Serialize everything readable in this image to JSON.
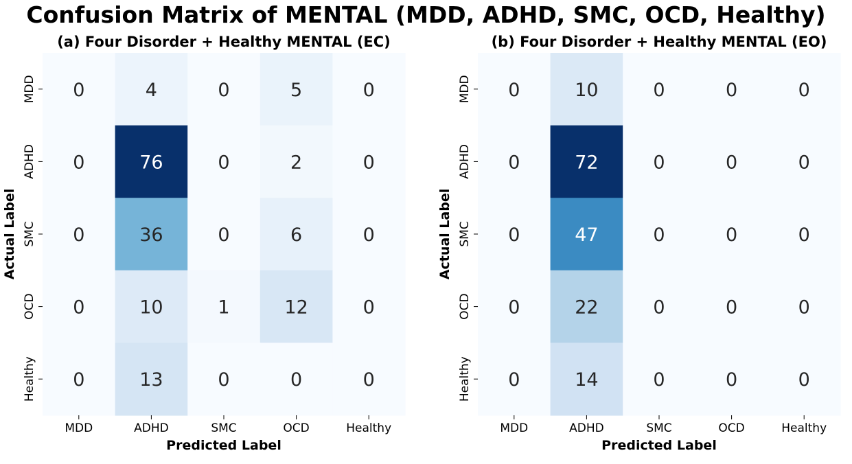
{
  "suptitle": "Confusion Matrix of MENTAL (MDD, ADHD, SMC, OCD, Healthy)",
  "chart_data": [
    {
      "type": "heatmap",
      "title": "(a) Four Disorder + Healthy MENTAL (EC)",
      "xlabel": "Predicted Label",
      "ylabel": "Actual Label",
      "x_categories": [
        "MDD",
        "ADHD",
        "SMC",
        "OCD",
        "Healthy"
      ],
      "y_categories": [
        "MDD",
        "ADHD",
        "SMC",
        "OCD",
        "Healthy"
      ],
      "matrix": [
        [
          0,
          4,
          0,
          5,
          0
        ],
        [
          0,
          76,
          0,
          2,
          0
        ],
        [
          0,
          36,
          0,
          6,
          0
        ],
        [
          0,
          10,
          1,
          12,
          0
        ],
        [
          0,
          13,
          0,
          0,
          0
        ]
      ],
      "colormap": "Blues",
      "colorbar": false
    },
    {
      "type": "heatmap",
      "title": "(b) Four Disorder + Healthy MENTAL (EO)",
      "xlabel": "Predicted Label",
      "ylabel": "Actual Label",
      "x_categories": [
        "MDD",
        "ADHD",
        "SMC",
        "OCD",
        "Healthy"
      ],
      "y_categories": [
        "MDD",
        "ADHD",
        "SMC",
        "OCD",
        "Healthy"
      ],
      "matrix": [
        [
          0,
          10,
          0,
          0,
          0
        ],
        [
          0,
          72,
          0,
          0,
          0
        ],
        [
          0,
          47,
          0,
          0,
          0
        ],
        [
          0,
          22,
          0,
          0,
          0
        ],
        [
          0,
          14,
          0,
          0,
          0
        ]
      ],
      "colormap": "Blues",
      "colorbar": false
    }
  ]
}
